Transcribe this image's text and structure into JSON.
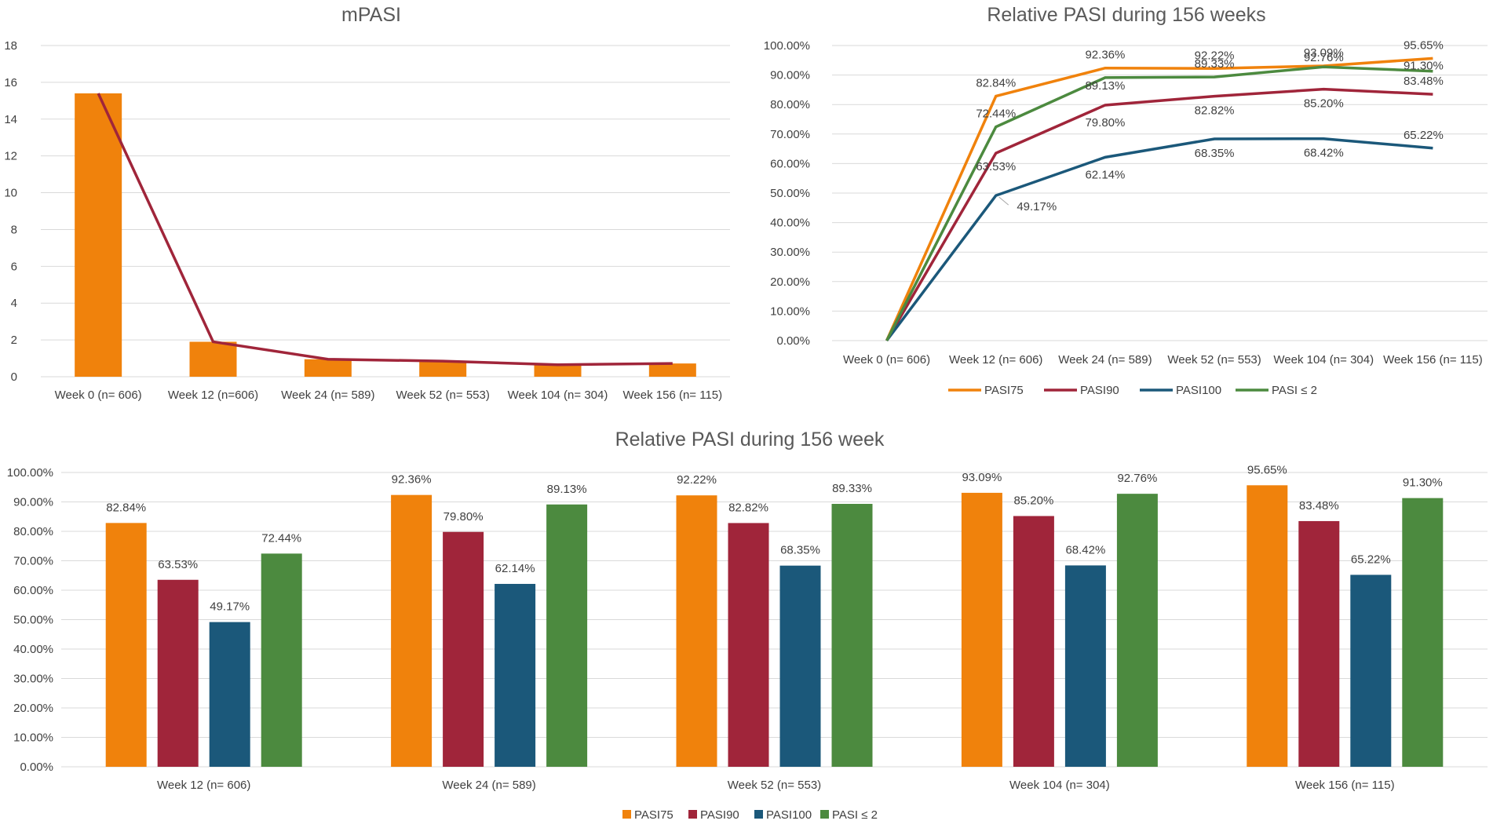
{
  "chart_data": [
    {
      "id": "mpasi",
      "type": "bar",
      "title": "mPASI",
      "categories": [
        "Week 0 (n= 606)",
        "Week 12 (n=606)",
        "Week 24 (n= 589)",
        "Week 52 (n= 553)",
        "Week 104 (n= 304)",
        "Week 156 (n= 115)"
      ],
      "values": [
        15.4,
        1.9,
        0.95,
        0.85,
        0.65,
        0.72
      ],
      "line_values": [
        15.4,
        1.9,
        0.95,
        0.85,
        0.65,
        0.72
      ],
      "ylim": [
        0,
        18
      ],
      "yticks": [
        0,
        2,
        4,
        6,
        8,
        10,
        12,
        14,
        16,
        18
      ],
      "xlabel": "",
      "ylabel": "",
      "bar_color": "#f0820c",
      "line_color": "#a0253a"
    },
    {
      "id": "relative-line",
      "type": "line",
      "title": "Relative PASI during 156 weeks",
      "categories": [
        "Week 0 (n= 606)",
        "Week 12 (n= 606)",
        "Week 24 (n= 589)",
        "Week 52 (n= 553)",
        "Week 104 (n= 304)",
        "Week 156 (n= 115)"
      ],
      "ylim": [
        0,
        100
      ],
      "yticks": [
        "0.00%",
        "10.00%",
        "20.00%",
        "30.00%",
        "40.00%",
        "50.00%",
        "60.00%",
        "70.00%",
        "80.00%",
        "90.00%",
        "100.00%"
      ],
      "series": [
        {
          "name": "PASI75",
          "color": "#f0820c",
          "values": [
            0,
            82.84,
            92.36,
            92.22,
            93.09,
            95.65
          ],
          "labels": [
            "",
            "82.84%",
            "92.36%",
            "92.22%",
            "93.09%",
            "95.65%"
          ]
        },
        {
          "name": "PASI90",
          "color": "#a0253a",
          "values": [
            0,
            63.53,
            79.8,
            82.82,
            85.2,
            83.48
          ],
          "labels": [
            "",
            "63.53%",
            "79.80%",
            "82.82%",
            "85.20%",
            "83.48%"
          ]
        },
        {
          "name": "PASI100",
          "color": "#1b587a",
          "values": [
            0,
            49.17,
            62.14,
            68.35,
            68.42,
            65.22
          ],
          "labels": [
            "",
            "49.17%",
            "62.14%",
            "68.35%",
            "68.42%",
            "65.22%"
          ]
        },
        {
          "name": "PASI ≤ 2",
          "color": "#4c8a3f",
          "values": [
            0,
            72.44,
            89.13,
            89.33,
            92.76,
            91.3
          ],
          "labels": [
            "",
            "72.44%",
            "89.13%",
            "89.33%",
            "92.76%",
            "91.30%"
          ]
        }
      ],
      "legend": "bottom"
    },
    {
      "id": "relative-bar",
      "type": "bar",
      "title": "Relative PASI during 156 week",
      "categories": [
        "Week 12 (n= 606)",
        "Week 24 (n= 589)",
        "Week 52 (n= 553)",
        "Week 104 (n= 304)",
        "Week 156 (n= 115)"
      ],
      "ylim": [
        0,
        100
      ],
      "yticks": [
        "0.00%",
        "10.00%",
        "20.00%",
        "30.00%",
        "40.00%",
        "50.00%",
        "60.00%",
        "70.00%",
        "80.00%",
        "90.00%",
        "100.00%"
      ],
      "series": [
        {
          "name": "PASI75",
          "color": "#f0820c",
          "values": [
            82.84,
            92.36,
            92.22,
            93.09,
            95.65
          ],
          "labels": [
            "82.84%",
            "92.36%",
            "92.22%",
            "93.09%",
            "95.65%"
          ]
        },
        {
          "name": "PASI90",
          "color": "#a0253a",
          "values": [
            63.53,
            79.8,
            82.82,
            85.2,
            83.48
          ],
          "labels": [
            "63.53%",
            "79.80%",
            "82.82%",
            "85.20%",
            "83.48%"
          ]
        },
        {
          "name": "PASI100",
          "color": "#1b587a",
          "values": [
            49.17,
            62.14,
            68.35,
            68.42,
            65.22
          ],
          "labels": [
            "49.17%",
            "62.14%",
            "68.35%",
            "68.42%",
            "65.22%"
          ]
        },
        {
          "name": "PASI ≤ 2",
          "color": "#4c8a3f",
          "values": [
            72.44,
            89.13,
            89.33,
            92.76,
            91.3
          ],
          "labels": [
            "72.44%",
            "89.13%",
            "89.33%",
            "92.76%",
            "91.30%"
          ]
        }
      ],
      "legend": "bottom"
    }
  ]
}
